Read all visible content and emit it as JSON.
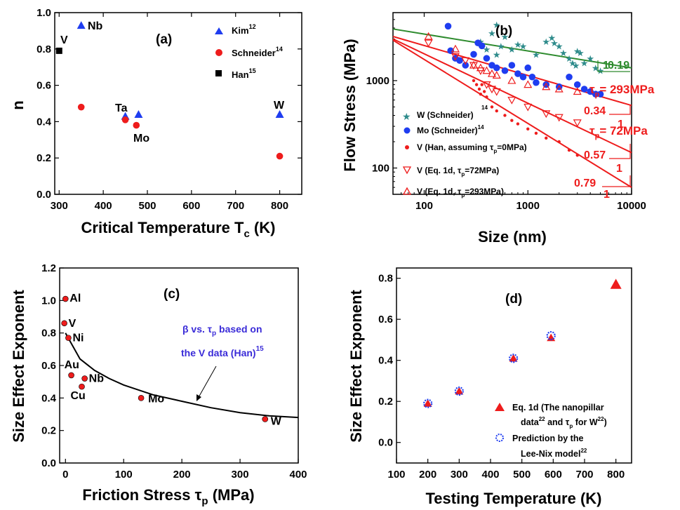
{
  "colors": {
    "blue": "#1f3df0",
    "red": "#ee1c1c",
    "black": "#000000",
    "green": "#2e8b2e",
    "teal": "#2e8b8b",
    "darkred": "#cc0000",
    "purple": "#3a2bd8"
  },
  "chart_data": [
    {
      "panel": "(a)",
      "type": "scatter",
      "xlabel": "Critical Temperature T",
      "xlabel_sub": "c",
      "xlabel_suffix": " (K)",
      "ylabel": "n",
      "xlim": [
        290,
        850
      ],
      "ylim": [
        0.0,
        1.0
      ],
      "xticks": [
        "300",
        "400",
        "500",
        "600",
        "700",
        "800"
      ],
      "yticks": [
        "0.0",
        "0.2",
        "0.4",
        "0.6",
        "0.8",
        "1.0"
      ],
      "series": [
        {
          "name": "Kim",
          "sup": "12",
          "marker": "triangle",
          "color": "#1f3df0",
          "points": [
            {
              "x": 350,
              "y": 0.93
            },
            {
              "x": 450,
              "y": 0.43
            },
            {
              "x": 480,
              "y": 0.44
            },
            {
              "x": 800,
              "y": 0.44
            }
          ]
        },
        {
          "name": "Schneider",
          "sup": "14",
          "marker": "circle",
          "color": "#ee1c1c",
          "points": [
            {
              "x": 350,
              "y": 0.48
            },
            {
              "x": 450,
              "y": 0.41
            },
            {
              "x": 475,
              "y": 0.38
            },
            {
              "x": 800,
              "y": 0.21
            }
          ]
        },
        {
          "name": "Han",
          "sup": "15",
          "marker": "square",
          "color": "#000000",
          "points": [
            {
              "x": 300,
              "y": 0.79
            }
          ]
        }
      ],
      "annotations": [
        "Nb",
        "V",
        "Ta",
        "Mo",
        "W"
      ]
    },
    {
      "panel": "(b)",
      "type": "scatter",
      "xlabel": "Size (nm)",
      "ylabel": "Flow Stress (MPa)",
      "xscale": "log",
      "yscale": "log",
      "xlim": [
        50,
        10000
      ],
      "ylim": [
        50,
        6000
      ],
      "xticks": [
        "100",
        "1000",
        "10000"
      ],
      "yticks": [
        "100",
        "1000"
      ],
      "series": [
        {
          "name": "W (Schneider)",
          "marker": "star",
          "color": "#2e8b8b",
          "points": [
            [
              350,
              2800
            ],
            [
              400,
              2300
            ],
            [
              450,
              3500
            ],
            [
              500,
              4400
            ],
            [
              500,
              2000
            ],
            [
              550,
              2500
            ],
            [
              600,
              3200
            ],
            [
              700,
              2300
            ],
            [
              800,
              2600
            ],
            [
              900,
              2500
            ],
            [
              1200,
              2000
            ],
            [
              1500,
              2800
            ],
            [
              1700,
              3100
            ],
            [
              1800,
              2700
            ],
            [
              2000,
              2500
            ],
            [
              2200,
              2100
            ],
            [
              2500,
              1800
            ],
            [
              2700,
              1600
            ],
            [
              2900,
              1500
            ],
            [
              3000,
              2200
            ],
            [
              3200,
              2100
            ],
            [
              3500,
              1600
            ],
            [
              4000,
              1800
            ],
            [
              4500,
              1400
            ],
            [
              5000,
              1300
            ]
          ]
        },
        {
          "name": "Mo (Schneider)",
          "sup": "14",
          "marker": "circle",
          "color": "#1f3df0",
          "points": [
            [
              170,
              4200
            ],
            [
              180,
              2200
            ],
            [
              200,
              1800
            ],
            [
              220,
              1700
            ],
            [
              250,
              1500
            ],
            [
              300,
              2000
            ],
            [
              330,
              2700
            ],
            [
              360,
              2500
            ],
            [
              400,
              1800
            ],
            [
              450,
              1500
            ],
            [
              500,
              1400
            ],
            [
              600,
              1300
            ],
            [
              700,
              1500
            ],
            [
              800,
              1200
            ],
            [
              900,
              1100
            ],
            [
              1000,
              1400
            ],
            [
              1100,
              1100
            ],
            [
              1200,
              950
            ],
            [
              1500,
              900
            ],
            [
              2000,
              850
            ],
            [
              2500,
              1100
            ],
            [
              3000,
              900
            ],
            [
              3500,
              800
            ],
            [
              4000,
              750
            ],
            [
              4500,
              700
            ],
            [
              5000,
              700
            ]
          ]
        },
        {
          "name": "V (Han, assuming τp=0MPa)",
          "marker": "dot",
          "color": "#ee1c1c",
          "points": [
            [
              300,
              1000
            ],
            [
              320,
              900
            ],
            [
              340,
              800
            ],
            [
              350,
              700
            ],
            [
              360,
              900
            ],
            [
              380,
              750
            ],
            [
              400,
              650
            ],
            [
              450,
              500
            ],
            [
              500,
              450
            ],
            [
              600,
              400
            ],
            [
              700,
              350
            ],
            [
              800,
              320
            ],
            [
              1000,
              280
            ],
            [
              1200,
              250
            ],
            [
              1500,
              220
            ],
            [
              2000,
              200
            ],
            [
              2500,
              160
            ],
            [
              3000,
              140
            ]
          ]
        },
        {
          "name": "V (Eq. 1d, τp=72MPa)",
          "marker": "triangle-down-open",
          "color": "#ee1c1c",
          "points": [
            [
              110,
              2700
            ],
            [
              200,
              1900
            ],
            [
              250,
              1700
            ],
            [
              300,
              1500
            ],
            [
              350,
              1300
            ],
            [
              400,
              900
            ],
            [
              450,
              800
            ],
            [
              500,
              750
            ],
            [
              700,
              600
            ],
            [
              1000,
              500
            ],
            [
              1500,
              420
            ],
            [
              2000,
              380
            ],
            [
              3000,
              330
            ]
          ]
        },
        {
          "name": "V (Eq. 1d, τp=293MPa)",
          "marker": "triangle-up-open",
          "color": "#ee1c1c",
          "points": [
            [
              110,
              3200
            ],
            [
              200,
              2300
            ],
            [
              300,
              1500
            ],
            [
              350,
              1400
            ],
            [
              400,
              1300
            ],
            [
              450,
              1200
            ],
            [
              500,
              1150
            ],
            [
              700,
              1000
            ],
            [
              1000,
              900
            ],
            [
              1500,
              850
            ],
            [
              2000,
              800
            ],
            [
              3000,
              750
            ]
          ]
        }
      ],
      "fit_lines": [
        {
          "color": "#2e8b2e",
          "from": [
            50,
            3900
          ],
          "to": [
            10000,
            1400
          ]
        },
        {
          "color": "#ee1c1c",
          "from": [
            50,
            3200
          ],
          "to": [
            10000,
            520
          ]
        },
        {
          "color": "#ee1c1c",
          "from": [
            50,
            3000
          ],
          "to": [
            10000,
            150
          ]
        },
        {
          "color": "#ee1c1c",
          "from": [
            50,
            2900
          ],
          "to": [
            10000,
            60
          ]
        }
      ],
      "slope_labels": [
        {
          "slope": "0.19",
          "color": "#2e8b2e"
        },
        {
          "slope": "0.34",
          "color": "#ee1c1c"
        },
        {
          "slope": "0.57",
          "color": "#ee1c1c"
        },
        {
          "slope": "0.79",
          "color": "#ee1c1c"
        }
      ],
      "slope_one": "1",
      "tau_labels": [
        "τp= 293MPa",
        "τp= 72MPa"
      ],
      "mini_label": "14"
    },
    {
      "panel": "(c)",
      "type": "scatter",
      "xlabel": "Friction Stress τ",
      "xlabel_sub": "p",
      "xlabel_suffix": " (MPa)",
      "ylabel": "Size Effect Exponent",
      "xlim": [
        -10,
        400
      ],
      "ylim": [
        0.0,
        1.2
      ],
      "xticks": [
        "0",
        "100",
        "200",
        "300",
        "400"
      ],
      "yticks": [
        "0.0",
        "0.2",
        "0.4",
        "0.6",
        "0.8",
        "1.0",
        "1.2"
      ],
      "points": [
        {
          "label": "Al",
          "x": 0,
          "y": 1.01
        },
        {
          "label": "V",
          "x": -2,
          "y": 0.86
        },
        {
          "label": "Ni",
          "x": 5,
          "y": 0.77
        },
        {
          "label": "Au",
          "x": 10,
          "y": 0.54
        },
        {
          "label": "Nb",
          "x": 33,
          "y": 0.52
        },
        {
          "label": "Cu",
          "x": 28,
          "y": 0.47
        },
        {
          "label": "Mo",
          "x": 130,
          "y": 0.4
        },
        {
          "label": "W",
          "x": 343,
          "y": 0.27
        }
      ],
      "curve": [
        [
          0,
          0.8
        ],
        [
          25,
          0.64
        ],
        [
          50,
          0.57
        ],
        [
          75,
          0.52
        ],
        [
          100,
          0.48
        ],
        [
          150,
          0.42
        ],
        [
          200,
          0.38
        ],
        [
          250,
          0.34
        ],
        [
          300,
          0.31
        ],
        [
          350,
          0.29
        ],
        [
          400,
          0.28
        ]
      ],
      "curve_label_line1": "β vs. τp based on",
      "curve_label_line2": "the V data (Han)",
      "curve_label_sup": "15"
    },
    {
      "panel": "(d)",
      "type": "scatter",
      "xlabel": "Testing Temperature (K)",
      "ylabel": "Size Effect Exponent",
      "xlim": [
        100,
        850
      ],
      "ylim": [
        -0.1,
        0.85
      ],
      "xticks": [
        "100",
        "200",
        "300",
        "400",
        "500",
        "600",
        "700",
        "800"
      ],
      "yticks": [
        "0.0",
        "0.2",
        "0.4",
        "0.6",
        "0.8"
      ],
      "series": [
        {
          "name": "Eq. 1d",
          "marker": "triangle",
          "color": "#ee1c1c",
          "points": [
            {
              "x": 200,
              "y": 0.19
            },
            {
              "x": 300,
              "y": 0.25
            },
            {
              "x": 473,
              "y": 0.41
            },
            {
              "x": 593,
              "y": 0.51
            },
            {
              "x": 800,
              "y": 0.77
            }
          ]
        },
        {
          "name": "Prediction by the Lee-Nix model",
          "marker": "circle-open",
          "color": "#1f3df0",
          "points": [
            {
              "x": 200,
              "y": 0.19
            },
            {
              "x": 300,
              "y": 0.25
            },
            {
              "x": 473,
              "y": 0.41
            },
            {
              "x": 593,
              "y": 0.52
            }
          ]
        }
      ],
      "legend": {
        "line1": "Eq. 1d (The nanopillar",
        "line2a": "data",
        "line2sup": "22",
        "line2b": " and τp for W",
        "line2sup2": "22",
        "line2c": ")",
        "line3": "Prediction by the",
        "line4": "Lee-Nix model",
        "line4sup": "22"
      }
    }
  ]
}
